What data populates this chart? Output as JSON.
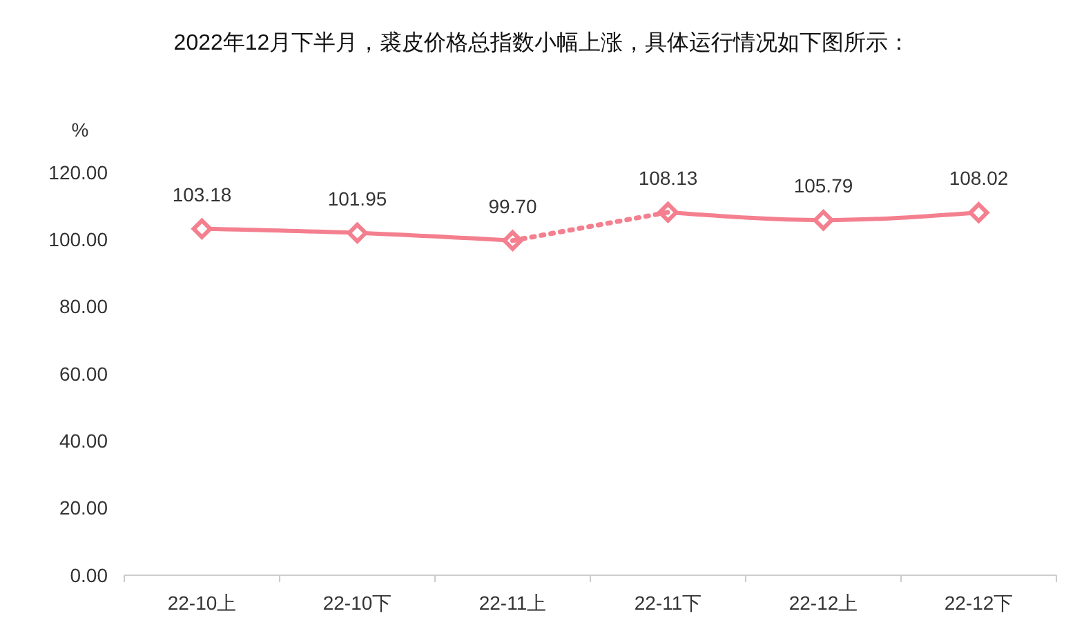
{
  "chart_data": {
    "type": "line",
    "title": "2022年12月下半月，裘皮价格总指数小幅上涨，具体运行情况如下图所示：",
    "ylabel": "%",
    "categories": [
      "22-10上",
      "22-10下",
      "22-11上",
      "22-11下",
      "22-12上",
      "22-12下"
    ],
    "series": [
      {
        "color": "#f47f8e",
        "values": [
          103.18,
          101.95,
          99.7,
          null,
          null,
          null
        ],
        "value_labels": [
          "103.18",
          "101.95",
          "99.70",
          null,
          null,
          null
        ],
        "marker": "diamond",
        "line_style": "solid"
      },
      {
        "color": "#f47f8e",
        "values": [
          null,
          null,
          null,
          108.13,
          105.79,
          108.02
        ],
        "value_labels": [
          null,
          null,
          null,
          "108.13",
          "105.79",
          "108.02"
        ],
        "marker": "diamond",
        "line_style": "solid"
      },
      {
        "color": "#f47f8e",
        "values": [
          null,
          null,
          99.7,
          108.13,
          null,
          null
        ],
        "marker": "none",
        "line_style": "dotted"
      }
    ],
    "ylim": [
      0,
      120
    ],
    "yticks": [
      {
        "value": 0,
        "label": "0.00"
      },
      {
        "value": 20,
        "label": "20.00"
      },
      {
        "value": 40,
        "label": "40.00"
      },
      {
        "value": 60,
        "label": "60.00"
      },
      {
        "value": 80,
        "label": "80.00"
      },
      {
        "value": 100,
        "label": "100.00"
      },
      {
        "value": 120,
        "label": "120.00"
      }
    ],
    "grid": false
  }
}
